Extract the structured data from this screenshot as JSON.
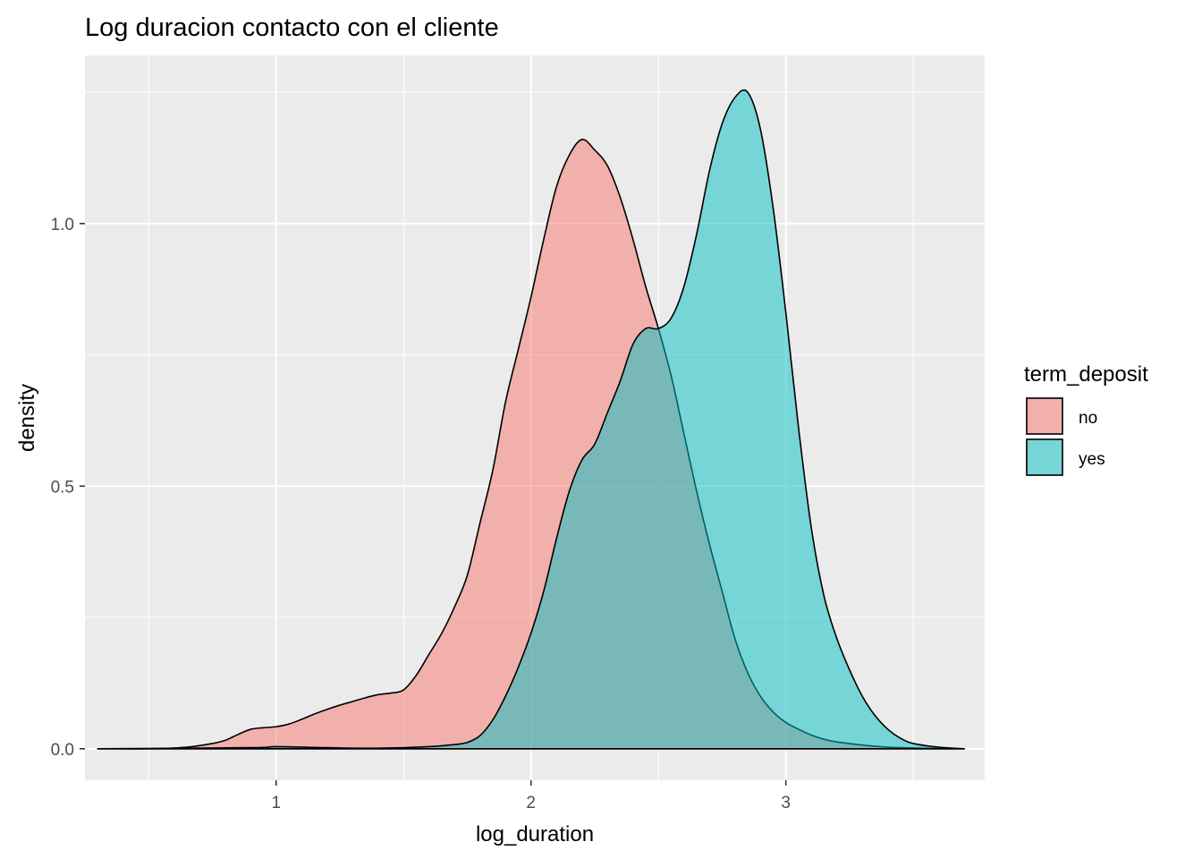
{
  "colors": {
    "panel_bg": "#ebebeb",
    "grid": "#ffffff",
    "outline": "#000000",
    "tick_text": "#4d4d4d"
  },
  "chart_data": {
    "type": "area",
    "subtype": "density",
    "title": "Log duracion contacto con el cliente",
    "xlabel": "log_duration",
    "ylabel": "density",
    "xlim": [
      0.25,
      3.78
    ],
    "ylim": [
      -0.06,
      1.32
    ],
    "x_ticks": [
      1,
      2,
      3
    ],
    "x_tick_labels": [
      "1",
      "2",
      "3"
    ],
    "y_ticks": [
      0.0,
      0.5,
      1.0
    ],
    "y_tick_labels": [
      "0.0",
      "0.5",
      "1.0"
    ],
    "grid": true,
    "fill_alpha": 0.5,
    "legend": {
      "title": "term_deposit",
      "position": "right",
      "entries": [
        {
          "label": "no",
          "color": "#F8766D"
        },
        {
          "label": "yes",
          "color": "#00BFC4"
        }
      ]
    },
    "series": [
      {
        "name": "no",
        "color": "#F8766D",
        "x": [
          0.3,
          0.5,
          0.65,
          0.75,
          0.8,
          0.85,
          0.9,
          0.95,
          1.0,
          1.05,
          1.1,
          1.15,
          1.2,
          1.25,
          1.3,
          1.35,
          1.4,
          1.45,
          1.5,
          1.55,
          1.6,
          1.65,
          1.7,
          1.75,
          1.8,
          1.85,
          1.9,
          1.95,
          2.0,
          2.05,
          2.1,
          2.15,
          2.2,
          2.25,
          2.3,
          2.35,
          2.4,
          2.45,
          2.5,
          2.55,
          2.6,
          2.65,
          2.7,
          2.75,
          2.8,
          2.85,
          2.9,
          2.95,
          3.0,
          3.05,
          3.1,
          3.15,
          3.2,
          3.3,
          3.4,
          3.5,
          3.6,
          3.7
        ],
        "y": [
          0.0,
          0.0,
          0.003,
          0.01,
          0.016,
          0.027,
          0.037,
          0.04,
          0.042,
          0.047,
          0.056,
          0.066,
          0.075,
          0.083,
          0.09,
          0.097,
          0.103,
          0.106,
          0.112,
          0.14,
          0.18,
          0.22,
          0.27,
          0.33,
          0.43,
          0.53,
          0.66,
          0.76,
          0.86,
          0.97,
          1.07,
          1.13,
          1.16,
          1.14,
          1.11,
          1.05,
          0.97,
          0.88,
          0.8,
          0.71,
          0.6,
          0.49,
          0.39,
          0.3,
          0.21,
          0.145,
          0.1,
          0.07,
          0.05,
          0.037,
          0.026,
          0.018,
          0.013,
          0.007,
          0.003,
          0.0015,
          0.0005,
          0.0
        ]
      },
      {
        "name": "yes",
        "color": "#00BFC4",
        "x": [
          0.3,
          0.9,
          1.0,
          1.2,
          1.4,
          1.6,
          1.7,
          1.75,
          1.8,
          1.85,
          1.9,
          1.95,
          2.0,
          2.05,
          2.1,
          2.15,
          2.2,
          2.25,
          2.3,
          2.35,
          2.4,
          2.45,
          2.5,
          2.55,
          2.6,
          2.65,
          2.7,
          2.75,
          2.8,
          2.85,
          2.9,
          2.95,
          3.0,
          3.05,
          3.1,
          3.15,
          3.2,
          3.25,
          3.3,
          3.35,
          3.4,
          3.45,
          3.5,
          3.6,
          3.7
        ],
        "y": [
          0.0,
          0.002,
          0.004,
          0.002,
          0.001,
          0.004,
          0.008,
          0.012,
          0.025,
          0.055,
          0.1,
          0.155,
          0.22,
          0.3,
          0.4,
          0.49,
          0.55,
          0.58,
          0.64,
          0.7,
          0.77,
          0.8,
          0.8,
          0.82,
          0.88,
          0.98,
          1.1,
          1.19,
          1.24,
          1.25,
          1.18,
          1.03,
          0.83,
          0.61,
          0.42,
          0.29,
          0.21,
          0.15,
          0.1,
          0.063,
          0.037,
          0.02,
          0.01,
          0.003,
          0.0
        ]
      }
    ]
  }
}
